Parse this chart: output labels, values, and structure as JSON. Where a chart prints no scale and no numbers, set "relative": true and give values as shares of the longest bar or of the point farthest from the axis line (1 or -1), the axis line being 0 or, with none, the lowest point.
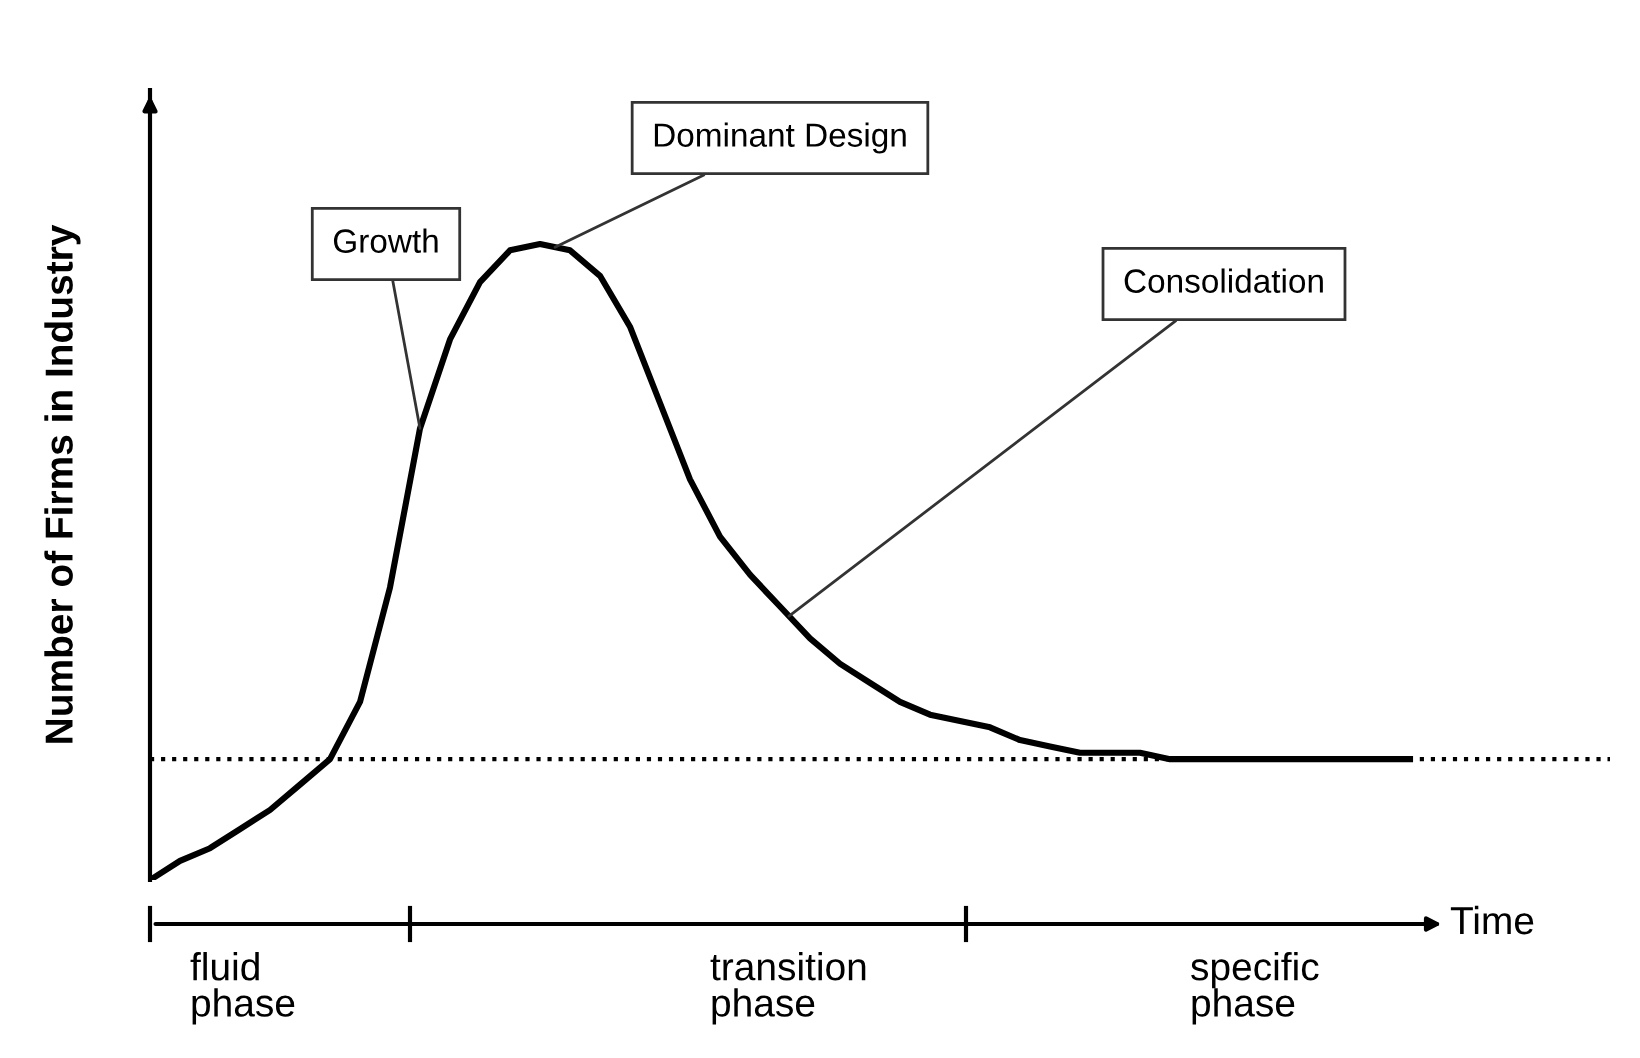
{
  "chart_data": {
    "type": "line",
    "relative": true,
    "xlabel": "Time",
    "ylabel": "Number of Firms in Industry",
    "categories": [
      null,
      null,
      null,
      null,
      null,
      null,
      null,
      null,
      null,
      null,
      null,
      null,
      null,
      null,
      null,
      null,
      null,
      null,
      null,
      null,
      null,
      null,
      null,
      null,
      null,
      null,
      null,
      null,
      null,
      null,
      null,
      null,
      null,
      null,
      null,
      null,
      null,
      null,
      null,
      null,
      null,
      null,
      null
    ],
    "series": [
      {
        "color": "#000000",
        "values": [
          0,
          0.03,
          0.05,
          0.08,
          0.11,
          0.15,
          0.19,
          0.28,
          0.46,
          0.71,
          0.85,
          0.94,
          0.99,
          1,
          0.99,
          0.95,
          0.87,
          0.75,
          0.63,
          0.54,
          0.48,
          0.43,
          0.38,
          0.34,
          0.31,
          0.28,
          0.26,
          0.25,
          0.24,
          0.22,
          0.21,
          0.2,
          0.2,
          0.2,
          0.19,
          0.19,
          0.19,
          0.19,
          0.19,
          0.19,
          0.19,
          0.19,
          0.19
        ]
      }
    ],
    "ref_lines": [
      {
        "axis": "y",
        "value": 0.19,
        "line_style": "dotted",
        "color": "#000000"
      }
    ],
    "annotations": [
      "Growth",
      "Dominant Design",
      "Consolidation",
      "fluid\nphase",
      "transition\nphase",
      "specific\nphase"
    ],
    "marker": "none",
    "line_style": "solid",
    "legend": false
  }
}
